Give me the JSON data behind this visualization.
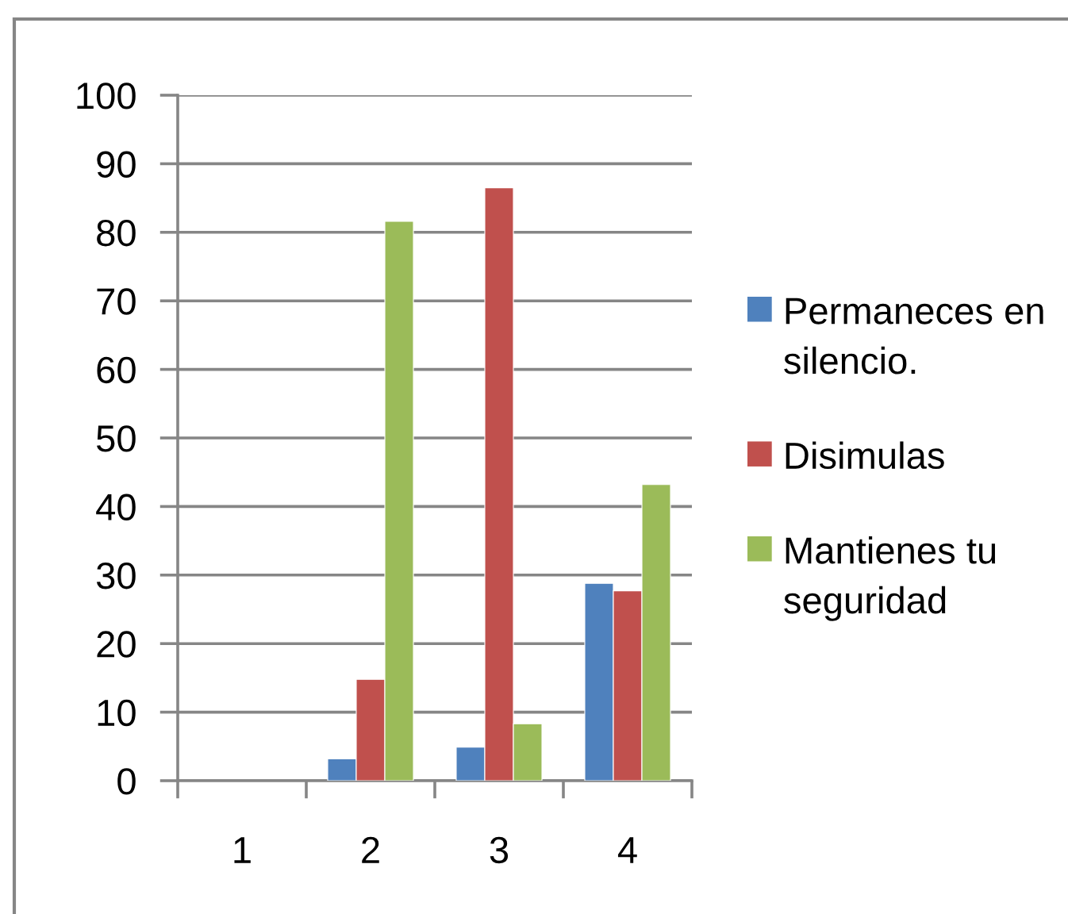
{
  "chart_data": {
    "type": "bar",
    "categories": [
      "1",
      "2",
      "3",
      "4"
    ],
    "series": [
      {
        "name": "Permaneces en silencio.",
        "color": "#4f81bd",
        "values": [
          null,
          3.2,
          4.9,
          28.8
        ]
      },
      {
        "name": "Disimulas",
        "color": "#c0504d",
        "values": [
          null,
          14.8,
          86.5,
          27.7
        ]
      },
      {
        "name": "Mantienes tu seguridad",
        "color": "#9bbb59",
        "values": [
          null,
          81.6,
          8.3,
          43.2
        ]
      }
    ],
    "ylim": [
      0,
      100
    ],
    "yticks": [
      0,
      10,
      20,
      30,
      40,
      50,
      60,
      70,
      80,
      90,
      100
    ],
    "grid": "y",
    "legend": "right"
  }
}
